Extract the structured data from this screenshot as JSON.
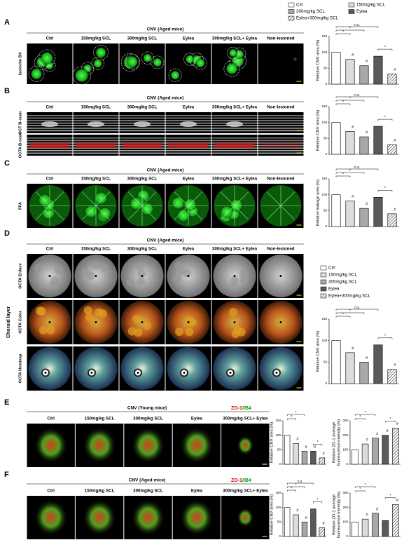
{
  "legend": {
    "names": [
      "Ctrl",
      "150mg/kg SCL",
      "300mg/kg SCL",
      "Eylea",
      "Eylea+300mg/kg SCL"
    ],
    "colors": [
      "#ffffff",
      "#dcdcdc",
      "#a8a8a8",
      "#5a5a5a",
      "#ffffff"
    ],
    "hatch": [
      false,
      false,
      false,
      false,
      true
    ]
  },
  "panels": [
    {
      "letter": "A",
      "title": "CNV (Aged mice)",
      "columns": [
        "Ctrl",
        "150mg/kg SCL",
        "300mg/kg SCL",
        "Eylea",
        "300mg/kg SCL+ Eylea",
        "Non-lesioned"
      ],
      "rows": [
        "Isolectin B4"
      ]
    },
    {
      "letter": "B",
      "title": "CNV (Aged mice)",
      "columns": [
        "Ctrl",
        "150mg/kg SCL",
        "300mg/kg SCL",
        "Eylea",
        "300mg/kg SCL+ Eylea",
        "Non-lesioned"
      ],
      "rows": [
        "OCT B-scan",
        "OCTA B-scan"
      ]
    },
    {
      "letter": "C",
      "title": "CNV (Aged mice)",
      "columns": [
        "Ctrl",
        "150mg/kg SCL",
        "300mg/kg SCL",
        "Eylea",
        "300mg/kg SCL+ Eylea",
        "Non-lesioned"
      ],
      "rows": [
        "FFA"
      ]
    },
    {
      "letter": "D",
      "title": "CNV (Aged mice)",
      "columns": [
        "Ctrl",
        "150mg/kg SCL",
        "300mg/kg SCL",
        "Eylea",
        "300mg/kg SCL+ Eylea",
        "Non-lesioned"
      ],
      "rows": [
        "OCTA Enface",
        "OCTA Color",
        "OCTA Heatmap"
      ],
      "side_label": "Choroid layer"
    },
    {
      "letter": "E",
      "title": "CNV (Young mice)",
      "columns": [
        "Ctrl",
        "150mg/kg SCL",
        "300mg/kg SCL",
        "Eylea",
        "300mg/kg SCL+ Eylea"
      ],
      "rows": [],
      "stain": [
        "ZO-1",
        "/IB4"
      ]
    },
    {
      "letter": "F",
      "title": "CNV (Aged mice)",
      "columns": [
        "Ctrl",
        "150mg/kg SCL",
        "300mg/kg SCL",
        "Eylea",
        "300mg/kg SCL+ Eylea"
      ],
      "rows": [],
      "stain": [
        "ZO-1",
        "/IB4"
      ]
    }
  ],
  "chart_data": [
    {
      "type": "bar",
      "ylabel": "Relative CNV area (%)",
      "values": [
        100,
        78,
        58,
        88,
        32
      ],
      "ylim": [
        0,
        150
      ],
      "yticks": [
        0,
        50,
        100,
        150
      ],
      "annotations": [
        "n.s.",
        "*",
        "*",
        "*"
      ],
      "bar_marks": [
        null,
        "#",
        "#",
        null,
        "#"
      ]
    },
    {
      "type": "bar",
      "ylabel": "Relative CNV area (%)",
      "values": [
        100,
        72,
        55,
        88,
        30
      ],
      "ylim": [
        0,
        150
      ],
      "yticks": [
        0,
        50,
        100,
        150
      ],
      "annotations": [
        "n.s.",
        "*",
        "*",
        "*"
      ],
      "bar_marks": [
        null,
        "#",
        "#",
        null,
        "#"
      ]
    },
    {
      "type": "bar",
      "ylabel": "Relative leakage area (%)",
      "values": [
        100,
        80,
        57,
        92,
        40
      ],
      "ylim": [
        0,
        150
      ],
      "yticks": [
        0,
        50,
        100,
        150
      ],
      "annotations": [
        "n.s.",
        "*",
        "*",
        "*"
      ],
      "bar_marks": [
        null,
        "#",
        "#",
        null,
        "#"
      ]
    },
    {
      "type": "bar",
      "ylabel": "Relative CNV area (%)",
      "values": [
        100,
        72,
        50,
        90,
        33
      ],
      "ylim": [
        0,
        150
      ],
      "yticks": [
        0,
        50,
        100,
        150
      ],
      "annotations": [
        "n.s.",
        "*",
        "*",
        "*"
      ],
      "bar_marks": [
        null,
        "#",
        "#",
        null,
        "#"
      ]
    },
    {
      "type": "bar",
      "ylabel": "Relative CNV area (%)",
      "values": [
        100,
        72,
        45,
        45,
        22
      ],
      "ylim": [
        0,
        150
      ],
      "yticks": [
        0,
        50,
        100,
        150
      ],
      "annotations": [
        "*",
        "*",
        "*"
      ],
      "bar_marks": [
        null,
        "#",
        "#",
        "#",
        "#"
      ]
    },
    {
      "type": "bar",
      "ylabel": [
        "Relative ZO-1 average",
        "fluorescence intensity (%)"
      ],
      "values": [
        100,
        140,
        180,
        200,
        250
      ],
      "ylim": [
        0,
        300
      ],
      "yticks": [
        0,
        100,
        200,
        300
      ],
      "annotations": [
        "*",
        "*",
        "*"
      ],
      "bar_marks": [
        null,
        "#",
        "#",
        "#",
        "#"
      ]
    },
    {
      "type": "bar",
      "ylabel": "Relative CNV area (%)",
      "values": [
        100,
        75,
        50,
        95,
        30
      ],
      "ylim": [
        0,
        150
      ],
      "yticks": [
        0,
        50,
        100,
        150
      ],
      "annotations": [
        "n.s.",
        "*",
        "*",
        "*"
      ],
      "bar_marks": [
        null,
        "#",
        "#",
        null,
        "#"
      ]
    },
    {
      "type": "bar",
      "ylabel": [
        "Relative ZO-1 average",
        "fluorescence intensity (%)"
      ],
      "values": [
        100,
        120,
        160,
        110,
        220
      ],
      "ylim": [
        0,
        300
      ],
      "yticks": [
        0,
        100,
        200,
        300
      ],
      "annotations": [
        "*",
        "*",
        "*"
      ],
      "bar_marks": [
        null,
        "#",
        "#",
        null,
        "#"
      ]
    }
  ]
}
